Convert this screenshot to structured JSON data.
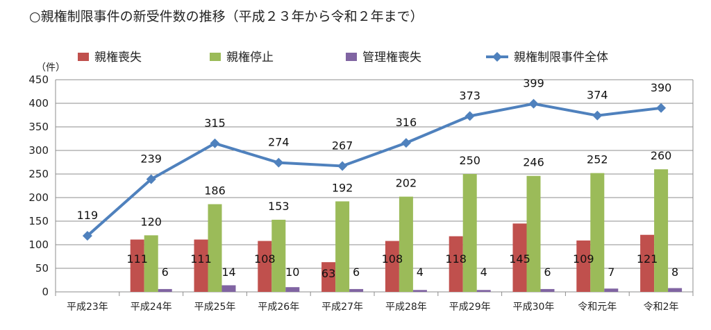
{
  "chart_data": {
    "type": "bar",
    "title": "○親権制限事件の新受件数の推移（平成２３年から令和２年まで）",
    "ylabel": "（件）",
    "xlabel": "",
    "ylim": [
      0,
      450
    ],
    "yticks": [
      0,
      50,
      100,
      150,
      200,
      250,
      300,
      350,
      400,
      450
    ],
    "grid": true,
    "legend_position": "top",
    "categories": [
      "平成23年",
      "平成24年",
      "平成25年",
      "平成26年",
      "平成27年",
      "平成28年",
      "平成29年",
      "平成30年",
      "令和元年",
      "令和2年"
    ],
    "series": [
      {
        "name": "親権喪失",
        "type": "bar",
        "color": "#c0504d",
        "values": [
          null,
          111,
          111,
          108,
          63,
          108,
          118,
          145,
          109,
          121
        ]
      },
      {
        "name": "親権停止",
        "type": "bar",
        "color": "#9bbb59",
        "values": [
          null,
          120,
          186,
          153,
          192,
          202,
          250,
          246,
          252,
          260
        ]
      },
      {
        "name": "管理権喪失",
        "type": "bar",
        "color": "#8064a2",
        "values": [
          null,
          6,
          14,
          10,
          6,
          4,
          4,
          6,
          7,
          8
        ]
      },
      {
        "name": "親権制限事件全体",
        "type": "line",
        "color": "#4f81bd",
        "values": [
          119,
          239,
          315,
          274,
          267,
          316,
          373,
          399,
          374,
          390
        ]
      }
    ]
  }
}
